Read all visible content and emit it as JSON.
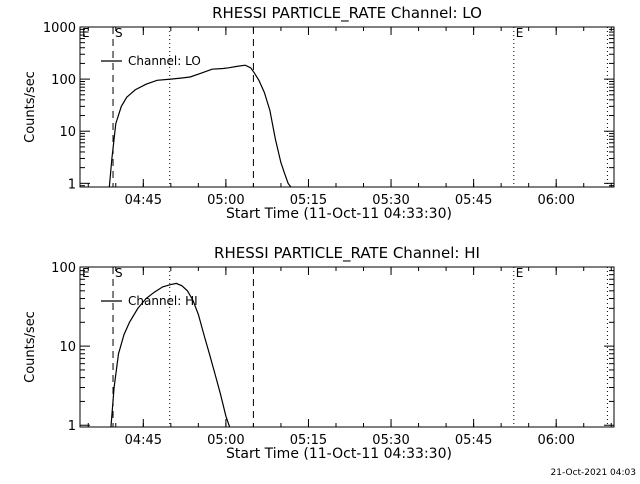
{
  "footer": {
    "timestamp": "21-Oct-2021 04:03"
  },
  "chart_data": [
    {
      "type": "line",
      "title": "RHESSI PARTICLE_RATE Channel: LO",
      "xlabel": "Start Time (11-Oct-11 04:33:30)",
      "ylabel": "Counts/sec",
      "x_unit": "minutes after 04:33:30",
      "xlim": [
        0,
        97
      ],
      "xticks": [
        {
          "x": 11.5,
          "label": "04:45"
        },
        {
          "x": 26.5,
          "label": "05:00"
        },
        {
          "x": 41.5,
          "label": "05:15"
        },
        {
          "x": 56.5,
          "label": "05:30"
        },
        {
          "x": 71.5,
          "label": "05:45"
        },
        {
          "x": 86.5,
          "label": "06:00"
        }
      ],
      "yscale": "log",
      "ylim": [
        0.85,
        1000
      ],
      "yticks": [
        {
          "v": 1,
          "label": "1"
        },
        {
          "v": 10,
          "label": "10"
        },
        {
          "v": 100,
          "label": "100"
        },
        {
          "v": 1000,
          "label": "1000"
        }
      ],
      "legend": {
        "position": "top-left",
        "entries": [
          "Channel: LO"
        ]
      },
      "series": [
        {
          "name": "Channel: LO",
          "x": [
            5.3,
            5.8,
            6.5,
            7.5,
            8.5,
            10,
            12,
            14,
            16.5,
            18.5,
            20,
            22,
            24,
            26,
            27,
            28.5,
            30,
            31,
            31.7,
            32.5,
            33.5,
            34.5,
            35.5,
            36.5,
            37.2,
            37.8,
            38.5
          ],
          "y": [
            0.8,
            3,
            14,
            30,
            45,
            62,
            80,
            95,
            100,
            105,
            110,
            130,
            155,
            160,
            165,
            175,
            185,
            165,
            130,
            95,
            55,
            25,
            7,
            2.5,
            1.5,
            1.0,
            0.8
          ]
        }
      ],
      "vlines": [
        {
          "x": 6.0,
          "style": "dashed",
          "label": "S"
        },
        {
          "x": 16.3,
          "style": "dotted",
          "label": ""
        },
        {
          "x": 31.5,
          "style": "dashed",
          "label": ""
        },
        {
          "x": 78.8,
          "style": "dotted",
          "label": "E"
        },
        {
          "x": 95.8,
          "style": "dotted",
          "label": ""
        }
      ],
      "corner_label": "E"
    },
    {
      "type": "line",
      "title": "RHESSI PARTICLE_RATE Channel: HI",
      "xlabel": "Start Time (11-Oct-11 04:33:30)",
      "ylabel": "Counts/sec",
      "x_unit": "minutes after 04:33:30",
      "xlim": [
        0,
        97
      ],
      "xticks": [
        {
          "x": 11.5,
          "label": "04:45"
        },
        {
          "x": 26.5,
          "label": "05:00"
        },
        {
          "x": 41.5,
          "label": "05:15"
        },
        {
          "x": 56.5,
          "label": "05:30"
        },
        {
          "x": 71.5,
          "label": "05:45"
        },
        {
          "x": 86.5,
          "label": "06:00"
        }
      ],
      "yscale": "log",
      "ylim": [
        0.95,
        100
      ],
      "yticks": [
        {
          "v": 1,
          "label": "1"
        },
        {
          "v": 10,
          "label": "10"
        },
        {
          "v": 100,
          "label": "100"
        }
      ],
      "legend": {
        "position": "top-left",
        "entries": [
          "Channel: HI"
        ]
      },
      "series": [
        {
          "name": "Channel: HI",
          "x": [
            5.6,
            6.2,
            7,
            8,
            9,
            10.5,
            12,
            13.5,
            15,
            16.5,
            17.5,
            18.5,
            19.5,
            20.5,
            21.5,
            22.5,
            23.5,
            24.5,
            25.5,
            26.5,
            27.3
          ],
          "y": [
            0.9,
            3,
            8,
            14,
            20,
            30,
            40,
            48,
            56,
            60,
            62,
            58,
            50,
            38,
            25,
            14,
            8,
            4.5,
            2.5,
            1.3,
            0.9
          ]
        }
      ],
      "vlines": [
        {
          "x": 6.0,
          "style": "dashed",
          "label": "S"
        },
        {
          "x": 16.3,
          "style": "dotted",
          "label": ""
        },
        {
          "x": 31.5,
          "style": "dashed",
          "label": ""
        },
        {
          "x": 78.8,
          "style": "dotted",
          "label": "E"
        },
        {
          "x": 95.8,
          "style": "dotted",
          "label": ""
        }
      ],
      "corner_label": "E"
    }
  ]
}
